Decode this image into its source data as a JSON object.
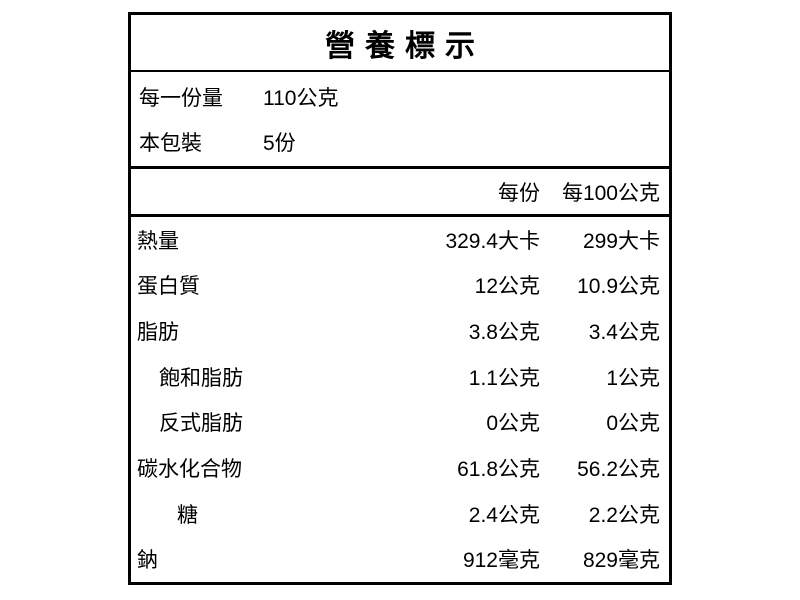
{
  "label": {
    "title": "營養標示",
    "serving_info": [
      {
        "label": "每一份量",
        "value": "110公克"
      },
      {
        "label": "本包裝",
        "value": "5份"
      }
    ],
    "columns": {
      "per_serving": "每份",
      "per_100g": "每100公克"
    },
    "rows": [
      {
        "name": "熱量",
        "indent": 0,
        "per_serving": "329.4大卡",
        "per_100g": "299大卡"
      },
      {
        "name": "蛋白質",
        "indent": 0,
        "per_serving": "12公克",
        "per_100g": "10.9公克"
      },
      {
        "name": "脂肪",
        "indent": 0,
        "per_serving": "3.8公克",
        "per_100g": "3.4公克"
      },
      {
        "name": "飽和脂肪",
        "indent": 1,
        "per_serving": "1.1公克",
        "per_100g": "1公克"
      },
      {
        "name": "反式脂肪",
        "indent": 1,
        "per_serving": "0公克",
        "per_100g": "0公克"
      },
      {
        "name": "碳水化合物",
        "indent": 0,
        "per_serving": "61.8公克",
        "per_100g": "56.2公克"
      },
      {
        "name": "糖",
        "indent": 2,
        "per_serving": "2.4公克",
        "per_100g": "2.2公克"
      },
      {
        "name": "鈉",
        "indent": 0,
        "per_serving": "912毫克",
        "per_100g": "829毫克"
      }
    ]
  },
  "colors": {
    "border": "#000000",
    "text": "#000000",
    "background": "#ffffff"
  }
}
